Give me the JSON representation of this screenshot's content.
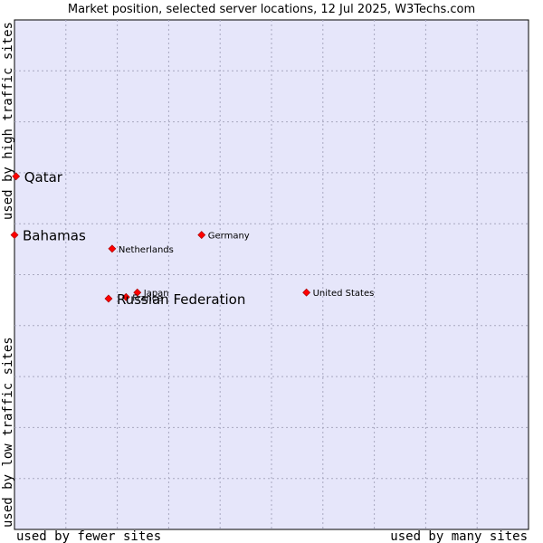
{
  "chart_data": {
    "type": "scatter",
    "title": "Market position, selected server locations, 12 Jul 2025, W3Techs.com",
    "xlabel_low": "used by fewer sites",
    "xlabel_high": "used by many sites",
    "ylabel_low": "used by low traffic sites",
    "ylabel_high": "used by high traffic sites",
    "xlim": [
      0,
      100
    ],
    "ylim": [
      0,
      100
    ],
    "grid": true,
    "highlight_color": "#ff0000",
    "plot_bg": "#e6e6fa",
    "points": [
      {
        "name": "Qatar",
        "x": 0.3,
        "y": 69.3,
        "highlight": true
      },
      {
        "name": "Bahamas",
        "x": 0.0,
        "y": 57.8,
        "highlight": true
      },
      {
        "name": "Netherlands",
        "x": 19.0,
        "y": 55.1,
        "highlight": false
      },
      {
        "name": "Germany",
        "x": 36.4,
        "y": 57.8,
        "highlight": false
      },
      {
        "name": "United States",
        "x": 56.8,
        "y": 46.5,
        "highlight": false
      },
      {
        "name": "Japan",
        "x": 23.9,
        "y": 46.5,
        "highlight": false
      },
      {
        "name": "France",
        "x": 21.7,
        "y": 45.6,
        "highlight": false
      },
      {
        "name": "Russian Federation",
        "x": 18.3,
        "y": 45.3,
        "highlight": true
      }
    ]
  }
}
